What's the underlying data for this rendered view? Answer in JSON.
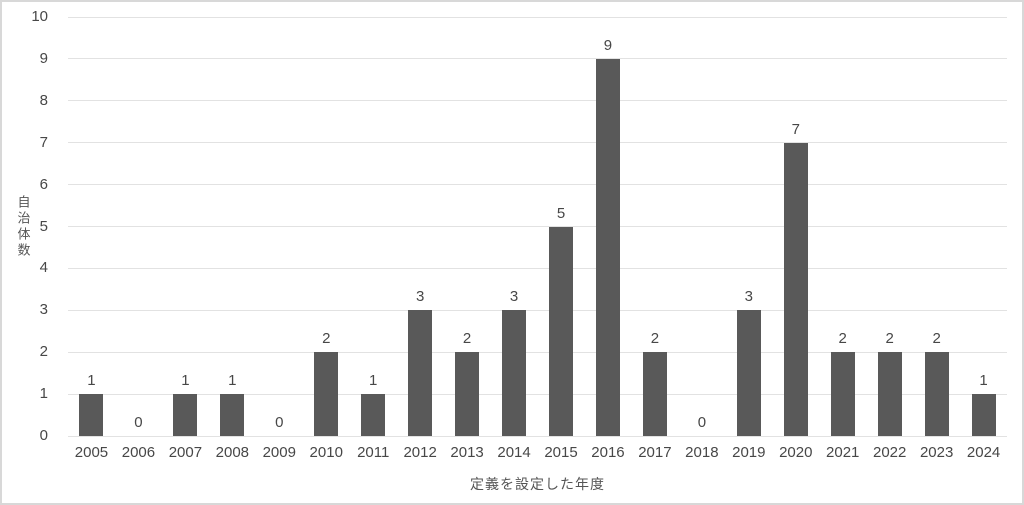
{
  "chart_data": {
    "type": "bar",
    "title": "",
    "categories": [
      "2005",
      "2006",
      "2007",
      "2008",
      "2009",
      "2010",
      "2011",
      "2012",
      "2013",
      "2014",
      "2015",
      "2016",
      "2017",
      "2018",
      "2019",
      "2020",
      "2021",
      "2022",
      "2023",
      "2024"
    ],
    "values": [
      1,
      0,
      1,
      1,
      0,
      2,
      1,
      3,
      2,
      3,
      5,
      9,
      2,
      0,
      3,
      7,
      2,
      2,
      2,
      1
    ],
    "xlabel": "定義を設定した年度",
    "ylabel": "自治体数",
    "ylim": [
      0,
      10
    ],
    "ytick_step": 1,
    "grid": true,
    "legend": false,
    "data_labels": true,
    "colors": {
      "bar": "#595959",
      "gridline": "#e2e2e2",
      "tick_text": "#474747",
      "axis_title_text": "#555555",
      "frame_border": "#d8d8d8",
      "background": "#ffffff"
    }
  }
}
